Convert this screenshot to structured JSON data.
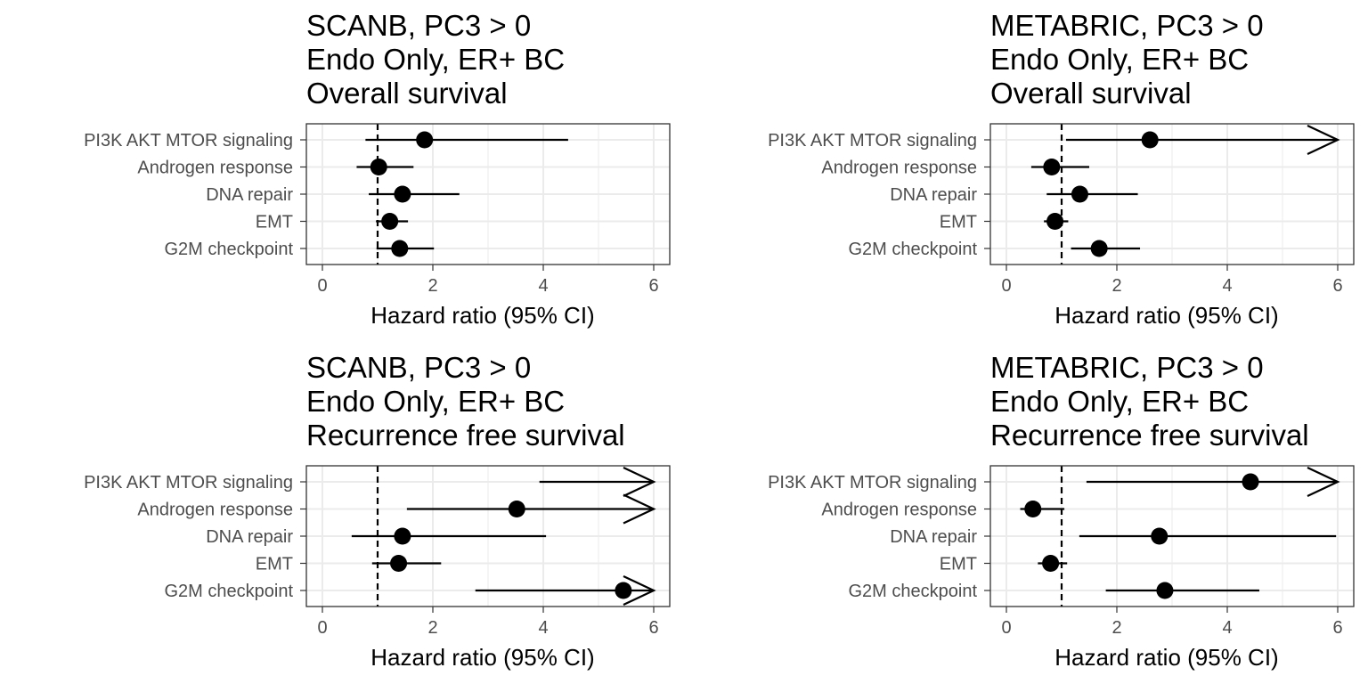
{
  "chart_data": [
    {
      "type": "forest",
      "title": [
        "SCANB, PC3 > 0",
        "Endo Only, ER+ BC",
        "Overall survival"
      ],
      "xlabel": "Hazard ratio (95% CI)",
      "xlim": [
        0,
        6
      ],
      "xticks": [
        "0",
        "2",
        "4",
        "6"
      ],
      "reference_line": 1,
      "grid": true,
      "categories": [
        "PI3K AKT MTOR signaling",
        "Androgen response",
        "DNA repair",
        "EMT",
        "G2M checkpoint"
      ],
      "hr": [
        1.85,
        1.02,
        1.45,
        1.22,
        1.4
      ],
      "lower": [
        0.78,
        0.62,
        0.84,
        0.97,
        0.98
      ],
      "upper": [
        4.45,
        1.65,
        2.48,
        1.55,
        2.02
      ],
      "upper_truncated": [
        false,
        false,
        false,
        false,
        false
      ]
    },
    {
      "type": "forest",
      "title": [
        "METABRIC, PC3 > 0",
        "Endo Only, ER+ BC",
        "Overall survival"
      ],
      "xlabel": "Hazard ratio (95% CI)",
      "xlim": [
        0,
        6
      ],
      "xticks": [
        "0",
        "2",
        "4",
        "6"
      ],
      "reference_line": 1,
      "grid": true,
      "categories": [
        "PI3K AKT MTOR signaling",
        "Androgen response",
        "DNA repair",
        "EMT",
        "G2M checkpoint"
      ],
      "hr": [
        2.6,
        0.82,
        1.33,
        0.88,
        1.68
      ],
      "lower": [
        1.08,
        0.45,
        0.73,
        0.68,
        1.17
      ],
      "upper": [
        6.0,
        1.5,
        2.38,
        1.12,
        2.42
      ],
      "upper_truncated": [
        true,
        false,
        false,
        false,
        false
      ]
    },
    {
      "type": "forest",
      "title": [
        "SCANB, PC3 > 0",
        "Endo Only, ER+ BC",
        "Recurrence free survival"
      ],
      "xlabel": "Hazard ratio (95% CI)",
      "xlim": [
        0,
        6
      ],
      "xticks": [
        "0",
        "2",
        "4",
        "6"
      ],
      "reference_line": 1,
      "grid": true,
      "categories": [
        "PI3K AKT MTOR signaling",
        "Androgen response",
        "DNA repair",
        "EMT",
        "G2M checkpoint"
      ],
      "hr": [
        null,
        3.52,
        1.45,
        1.38,
        5.45
      ],
      "lower": [
        3.93,
        1.53,
        0.53,
        0.9,
        2.77
      ],
      "upper": [
        6.0,
        6.0,
        4.05,
        2.15,
        6.0
      ],
      "upper_truncated": [
        true,
        true,
        false,
        false,
        true
      ]
    },
    {
      "type": "forest",
      "title": [
        "METABRIC, PC3 > 0",
        "Endo Only, ER+ BC",
        "Recurrence free survival"
      ],
      "xlabel": "Hazard ratio (95% CI)",
      "xlim": [
        0,
        6
      ],
      "xticks": [
        "0",
        "2",
        "4",
        "6"
      ],
      "reference_line": 1,
      "grid": true,
      "categories": [
        "PI3K AKT MTOR signaling",
        "Androgen response",
        "DNA repair",
        "EMT",
        "G2M checkpoint"
      ],
      "hr": [
        4.42,
        0.48,
        2.77,
        0.8,
        2.87
      ],
      "lower": [
        1.45,
        0.25,
        1.32,
        0.57,
        1.8
      ],
      "upper": [
        6.0,
        1.05,
        5.97,
        1.1,
        4.58
      ],
      "upper_truncated": [
        true,
        false,
        false,
        false,
        false
      ]
    }
  ]
}
